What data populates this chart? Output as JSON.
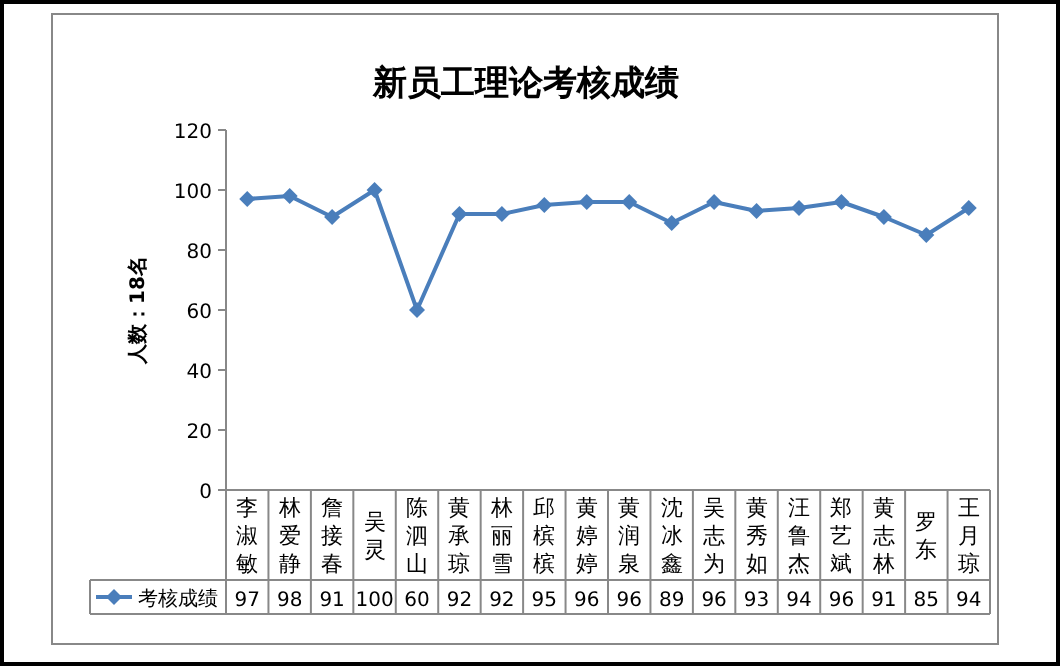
{
  "chart_data": {
    "type": "line",
    "title": "新员工理论考核成绩",
    "ylabel": "人数：18名",
    "categories": [
      "李淑敏",
      "林爱静",
      "詹接春",
      "吴灵",
      "陈泗山",
      "黄承琼",
      "林丽雪",
      "邱槟槟",
      "黄婷婷",
      "黄润泉",
      "沈冰鑫",
      "吴志为",
      "黄秀如",
      "汪鲁杰",
      "郑艺斌",
      "黄志林",
      "罗东",
      "王月琼"
    ],
    "series": [
      {
        "name": "考核成绩",
        "color": "#4a7ebb",
        "values": [
          97,
          98,
          91,
          100,
          60,
          92,
          92,
          95,
          96,
          96,
          89,
          96,
          93,
          94,
          96,
          91,
          85,
          94
        ]
      }
    ],
    "ylim": [
      0,
      120
    ],
    "yticks": [
      0,
      20,
      40,
      60,
      80,
      100,
      120
    ],
    "grid": false,
    "legend": "bottom",
    "marker": "diamond",
    "line_style": "solid",
    "data_labels": true
  }
}
